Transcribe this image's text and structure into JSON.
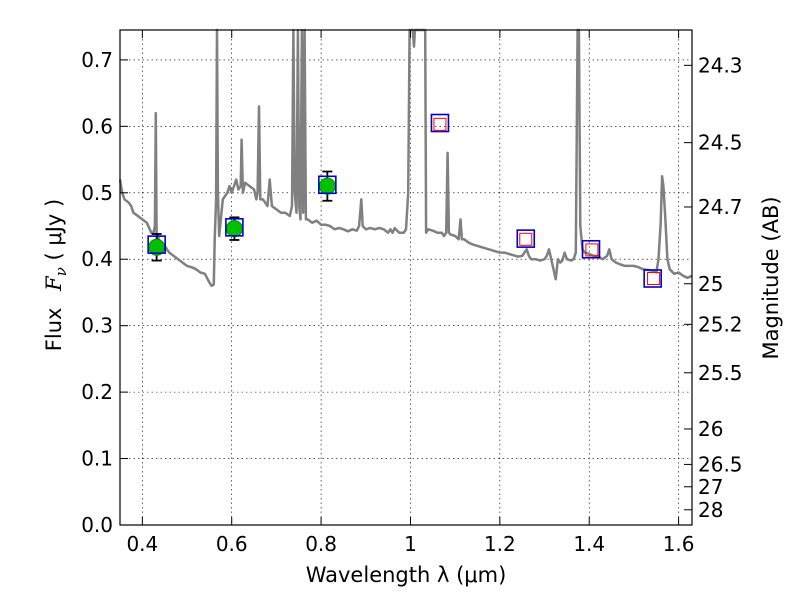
{
  "chart_data": {
    "type": "scatter",
    "xlabel": "Wavelength  λ (μm)",
    "ylabel_parts": {
      "flux": "Flux",
      "symbol": "F",
      "subscript": "ν",
      "unit_open": " ( ",
      "unit": "μJy",
      "unit_close": " )"
    },
    "y2label": "Magnitude (AB)",
    "xlim": [
      0.35,
      1.63
    ],
    "ylim": [
      0.0,
      0.745
    ],
    "grid": true,
    "legend": "none",
    "x_ticks": [
      {
        "value": 0.4,
        "label": "0.4"
      },
      {
        "value": 0.6,
        "label": "0.6"
      },
      {
        "value": 0.8,
        "label": "0.8"
      },
      {
        "value": 1.0,
        "label": "1"
      },
      {
        "value": 1.2,
        "label": "1.2"
      },
      {
        "value": 1.4,
        "label": "1.4"
      },
      {
        "value": 1.6,
        "label": "1.6"
      }
    ],
    "y_ticks": [
      {
        "value": 0.0,
        "label": "0.0"
      },
      {
        "value": 0.1,
        "label": "0.1"
      },
      {
        "value": 0.2,
        "label": "0.2"
      },
      {
        "value": 0.3,
        "label": "0.3"
      },
      {
        "value": 0.4,
        "label": "0.4"
      },
      {
        "value": 0.5,
        "label": "0.5"
      },
      {
        "value": 0.6,
        "label": "0.6"
      },
      {
        "value": 0.7,
        "label": "0.7"
      }
    ],
    "mag_ticks": [
      {
        "mag": 24.3,
        "label": "24.3"
      },
      {
        "mag": 24.5,
        "label": "24.5"
      },
      {
        "mag": 24.7,
        "label": "24.7"
      },
      {
        "mag": 25.0,
        "label": "25"
      },
      {
        "mag": 25.2,
        "label": "25.2"
      },
      {
        "mag": 25.5,
        "label": "25.5"
      },
      {
        "mag": 26.0,
        "label": "26"
      },
      {
        "mag": 26.5,
        "label": "26.5"
      },
      {
        "mag": 27.0,
        "label": "27"
      },
      {
        "mag": 28.0,
        "label": "28"
      }
    ],
    "sed_model": {
      "color": "#808080",
      "points": [
        [
          0.35,
          0.52
        ],
        [
          0.355,
          0.5
        ],
        [
          0.36,
          0.49
        ],
        [
          0.37,
          0.485
        ],
        [
          0.375,
          0.48
        ],
        [
          0.38,
          0.47
        ],
        [
          0.39,
          0.465
        ],
        [
          0.4,
          0.46
        ],
        [
          0.41,
          0.455
        ],
        [
          0.42,
          0.44
        ],
        [
          0.425,
          0.44
        ],
        [
          0.428,
          0.45
        ],
        [
          0.43,
          0.62
        ],
        [
          0.432,
          0.44
        ],
        [
          0.44,
          0.425
        ],
        [
          0.45,
          0.42
        ],
        [
          0.46,
          0.41
        ],
        [
          0.47,
          0.405
        ],
        [
          0.48,
          0.4
        ],
        [
          0.49,
          0.395
        ],
        [
          0.5,
          0.39
        ],
        [
          0.51,
          0.388
        ],
        [
          0.52,
          0.385
        ],
        [
          0.53,
          0.38
        ],
        [
          0.54,
          0.378
        ],
        [
          0.55,
          0.365
        ],
        [
          0.555,
          0.36
        ],
        [
          0.56,
          0.362
        ],
        [
          0.562,
          0.43
        ],
        [
          0.565,
          0.49
        ],
        [
          0.567,
          0.745
        ],
        [
          0.569,
          0.5
        ],
        [
          0.572,
          0.435
        ],
        [
          0.58,
          0.49
        ],
        [
          0.59,
          0.5
        ],
        [
          0.595,
          0.51
        ],
        [
          0.6,
          0.5
        ],
        [
          0.605,
          0.51
        ],
        [
          0.61,
          0.52
        ],
        [
          0.615,
          0.505
        ],
        [
          0.62,
          0.51
        ],
        [
          0.622,
          0.58
        ],
        [
          0.625,
          0.5
        ],
        [
          0.63,
          0.515
        ],
        [
          0.64,
          0.51
        ],
        [
          0.65,
          0.505
        ],
        [
          0.655,
          0.49
        ],
        [
          0.658,
          0.5
        ],
        [
          0.661,
          0.63
        ],
        [
          0.664,
          0.49
        ],
        [
          0.67,
          0.49
        ],
        [
          0.68,
          0.48
        ],
        [
          0.685,
          0.52
        ],
        [
          0.69,
          0.48
        ],
        [
          0.7,
          0.475
        ],
        [
          0.71,
          0.47
        ],
        [
          0.72,
          0.47
        ],
        [
          0.73,
          0.465
        ],
        [
          0.735,
          0.48
        ],
        [
          0.738,
          0.745
        ],
        [
          0.741,
          0.5
        ],
        [
          0.745,
          0.47
        ],
        [
          0.748,
          0.745
        ],
        [
          0.751,
          0.48
        ],
        [
          0.754,
          0.46
        ],
        [
          0.757,
          0.745
        ],
        [
          0.76,
          0.47
        ],
        [
          0.763,
          0.745
        ],
        [
          0.766,
          0.46
        ],
        [
          0.77,
          0.46
        ],
        [
          0.78,
          0.455
        ],
        [
          0.79,
          0.458
        ],
        [
          0.8,
          0.452
        ],
        [
          0.81,
          0.452
        ],
        [
          0.82,
          0.45
        ],
        [
          0.83,
          0.445
        ],
        [
          0.84,
          0.447
        ],
        [
          0.85,
          0.445
        ],
        [
          0.86,
          0.442
        ],
        [
          0.87,
          0.445
        ],
        [
          0.88,
          0.443
        ],
        [
          0.885,
          0.45
        ],
        [
          0.89,
          0.49
        ],
        [
          0.893,
          0.45
        ],
        [
          0.9,
          0.445
        ],
        [
          0.91,
          0.447
        ],
        [
          0.92,
          0.445
        ],
        [
          0.93,
          0.447
        ],
        [
          0.94,
          0.445
        ],
        [
          0.95,
          0.44
        ],
        [
          0.955,
          0.445
        ],
        [
          0.96,
          0.44
        ],
        [
          0.965,
          0.447
        ],
        [
          0.97,
          0.443
        ],
        [
          0.975,
          0.44
        ],
        [
          0.98,
          0.44
        ],
        [
          0.985,
          0.44
        ],
        [
          0.99,
          0.445
        ],
        [
          0.995,
          0.5
        ],
        [
          0.998,
          0.745
        ],
        [
          1.0,
          0.745
        ],
        [
          1.005,
          0.745
        ],
        [
          1.008,
          0.72
        ],
        [
          1.01,
          0.745
        ],
        [
          1.02,
          0.745
        ],
        [
          1.03,
          0.745
        ],
        [
          1.033,
          0.745
        ],
        [
          1.035,
          0.44
        ],
        [
          1.04,
          0.445
        ],
        [
          1.05,
          0.443
        ],
        [
          1.06,
          0.44
        ],
        [
          1.07,
          0.44
        ],
        [
          1.075,
          0.435
        ],
        [
          1.08,
          0.44
        ],
        [
          1.083,
          0.56
        ],
        [
          1.086,
          0.44
        ],
        [
          1.09,
          0.437
        ],
        [
          1.1,
          0.435
        ],
        [
          1.108,
          0.43
        ],
        [
          1.112,
          0.46
        ],
        [
          1.115,
          0.43
        ],
        [
          1.12,
          0.43
        ],
        [
          1.13,
          0.425
        ],
        [
          1.14,
          0.422
        ],
        [
          1.15,
          0.42
        ],
        [
          1.16,
          0.418
        ],
        [
          1.17,
          0.416
        ],
        [
          1.18,
          0.414
        ],
        [
          1.19,
          0.412
        ],
        [
          1.2,
          0.41
        ],
        [
          1.21,
          0.41
        ],
        [
          1.22,
          0.408
        ],
        [
          1.23,
          0.406
        ],
        [
          1.24,
          0.404
        ],
        [
          1.25,
          0.405
        ],
        [
          1.26,
          0.415
        ],
        [
          1.265,
          0.405
        ],
        [
          1.27,
          0.4
        ],
        [
          1.28,
          0.4
        ],
        [
          1.29,
          0.398
        ],
        [
          1.3,
          0.4
        ],
        [
          1.305,
          0.405
        ],
        [
          1.31,
          0.415
        ],
        [
          1.315,
          0.4
        ],
        [
          1.32,
          0.385
        ],
        [
          1.325,
          0.37
        ],
        [
          1.33,
          0.4
        ],
        [
          1.335,
          0.395
        ],
        [
          1.34,
          0.398
        ],
        [
          1.345,
          0.41
        ],
        [
          1.35,
          0.4
        ],
        [
          1.36,
          0.398
        ],
        [
          1.365,
          0.4
        ],
        [
          1.37,
          0.41
        ],
        [
          1.374,
          0.745
        ],
        [
          1.377,
          0.745
        ],
        [
          1.38,
          0.45
        ],
        [
          1.385,
          0.415
        ],
        [
          1.39,
          0.41
        ],
        [
          1.4,
          0.408
        ],
        [
          1.41,
          0.405
        ],
        [
          1.42,
          0.405
        ],
        [
          1.425,
          0.402
        ],
        [
          1.43,
          0.4
        ],
        [
          1.44,
          0.405
        ],
        [
          1.445,
          0.415
        ],
        [
          1.45,
          0.4
        ],
        [
          1.46,
          0.395
        ],
        [
          1.47,
          0.392
        ],
        [
          1.48,
          0.39
        ],
        [
          1.5,
          0.39
        ],
        [
          1.51,
          0.388
        ],
        [
          1.52,
          0.385
        ],
        [
          1.53,
          0.384
        ],
        [
          1.54,
          0.383
        ],
        [
          1.55,
          0.38
        ],
        [
          1.555,
          0.4
        ],
        [
          1.56,
          0.455
        ],
        [
          1.563,
          0.525
        ],
        [
          1.566,
          0.51
        ],
        [
          1.57,
          0.465
        ],
        [
          1.575,
          0.4
        ],
        [
          1.58,
          0.385
        ],
        [
          1.59,
          0.378
        ],
        [
          1.6,
          0.38
        ],
        [
          1.61,
          0.375
        ],
        [
          1.62,
          0.372
        ],
        [
          1.63,
          0.375
        ]
      ]
    },
    "series": [
      {
        "marker": "circle",
        "color": "#00c000",
        "points": [
          {
            "x": 0.432,
            "y": 0.418,
            "yerr": 0.02
          },
          {
            "x": 0.606,
            "y": 0.446,
            "yerr": 0.017
          },
          {
            "x": 0.814,
            "y": 0.51,
            "yerr": 0.022
          }
        ]
      },
      {
        "marker": "square-blue",
        "color": "#0000cc",
        "points": [
          {
            "x": 0.432,
            "y": 0.422
          },
          {
            "x": 0.606,
            "y": 0.448
          },
          {
            "x": 0.814,
            "y": 0.512
          },
          {
            "x": 1.066,
            "y": 0.605
          },
          {
            "x": 1.258,
            "y": 0.431
          },
          {
            "x": 1.404,
            "y": 0.415
          },
          {
            "x": 1.542,
            "y": 0.371
          }
        ]
      },
      {
        "marker": "square-red",
        "color": "#ff0000",
        "points": [
          {
            "x": 1.066,
            "y": 0.603
          },
          {
            "x": 1.258,
            "y": 0.43
          },
          {
            "x": 1.406,
            "y": 0.414
          },
          {
            "x": 1.544,
            "y": 0.371
          }
        ]
      }
    ]
  }
}
